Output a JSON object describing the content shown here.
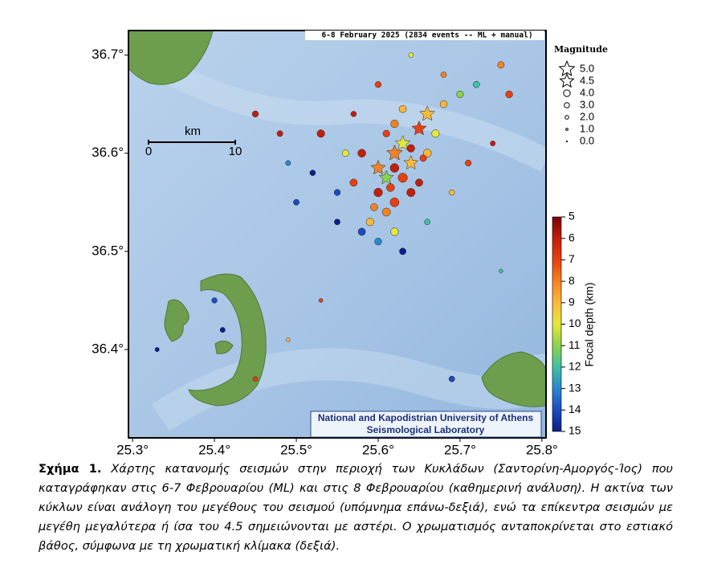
{
  "map": {
    "title": "6-8 February 2025 (2834 events -- ML + manual)",
    "institution": [
      "National and Kapodistrian University of Athens",
      "Seismological Laboratory"
    ],
    "xlim": [
      25.295,
      25.805
    ],
    "ylim": [
      36.31,
      36.725
    ],
    "xticks": [
      {
        "value": 25.3,
        "label": "25.3°"
      },
      {
        "value": 25.4,
        "label": "25.4°"
      },
      {
        "value": 25.5,
        "label": "25.5°"
      },
      {
        "value": 25.6,
        "label": "25.6°"
      },
      {
        "value": 25.7,
        "label": "25.7°"
      },
      {
        "value": 25.8,
        "label": "25.8°"
      }
    ],
    "yticks": [
      {
        "value": 36.4,
        "label": "36.4°"
      },
      {
        "value": 36.5,
        "label": "36.5°"
      },
      {
        "value": 36.6,
        "label": "36.6°"
      },
      {
        "value": 36.7,
        "label": "36.7°"
      }
    ],
    "scale_bar": {
      "unit": "km",
      "ticks": [
        0,
        10
      ]
    },
    "legend": {
      "title": "Magnitude",
      "items": [
        {
          "value": 5,
          "label": "5.0",
          "symbol": "star"
        },
        {
          "value": 4.5,
          "label": "4.5",
          "symbol": "star"
        },
        {
          "value": 4,
          "label": "4.0",
          "symbol": "circle"
        },
        {
          "value": 3,
          "label": "3.0",
          "symbol": "circle"
        },
        {
          "value": 2,
          "label": "2.0",
          "symbol": "circle"
        },
        {
          "value": 1,
          "label": "1.0",
          "symbol": "circle"
        },
        {
          "value": 0,
          "label": "0.0",
          "symbol": "circle"
        }
      ]
    },
    "colorbar": {
      "label": "Focal depth (km)",
      "ticks": [
        5,
        6,
        7,
        8,
        9,
        10,
        11,
        12,
        13,
        14,
        15
      ],
      "colors": [
        "#7a0403",
        "#c41e0a",
        "#e8400f",
        "#f7821f",
        "#fbb93a",
        "#e3e83a",
        "#8ed24b",
        "#3ec1a4",
        "#2a87d0",
        "#1c4bc0",
        "#0a1f8a"
      ]
    },
    "events": {
      "lon": [
        25.62,
        25.66,
        25.65,
        25.63,
        25.6,
        25.64,
        25.61,
        25.63,
        25.6,
        25.62,
        25.61,
        25.59,
        25.62,
        25.6,
        25.64,
        25.65,
        25.66,
        25.67,
        25.68,
        25.7,
        25.72,
        25.75,
        25.76,
        25.58,
        25.57,
        25.55,
        25.56,
        25.53,
        25.52,
        25.5,
        25.49,
        25.58,
        25.55,
        25.63,
        25.66,
        25.69,
        25.71,
        25.74,
        25.68,
        25.64,
        25.6,
        25.57,
        25.45,
        25.48,
        25.4,
        25.33,
        25.41,
        25.45,
        25.49,
        25.53,
        25.69,
        25.75,
        25.62,
        25.63,
        25.61,
        25.64,
        25.62,
        25.655,
        25.595,
        25.615
      ],
      "lat": [
        36.6,
        36.64,
        36.625,
        36.61,
        36.585,
        36.59,
        36.575,
        36.575,
        36.56,
        36.55,
        36.54,
        36.53,
        36.52,
        36.51,
        36.56,
        36.57,
        36.6,
        36.62,
        36.65,
        36.66,
        36.67,
        36.69,
        36.66,
        36.6,
        36.57,
        36.56,
        36.6,
        36.62,
        36.58,
        36.55,
        36.59,
        36.52,
        36.53,
        36.5,
        36.53,
        36.56,
        36.59,
        36.61,
        36.68,
        36.7,
        36.67,
        36.64,
        36.64,
        36.62,
        36.45,
        36.4,
        36.42,
        36.37,
        36.41,
        36.45,
        36.37,
        36.48,
        36.63,
        36.645,
        36.62,
        36.605,
        36.585,
        36.595,
        36.545,
        36.565
      ],
      "magnitude": [
        5.0,
        4.8,
        4.6,
        4.7,
        4.6,
        4.5,
        4.5,
        4.4,
        4.0,
        4.2,
        3.8,
        3.5,
        3.6,
        3.2,
        3.9,
        3.4,
        3.8,
        3.5,
        3.3,
        3.1,
        2.9,
        3.0,
        3.2,
        3.7,
        3.4,
        2.8,
        3.0,
        3.5,
        2.5,
        2.6,
        2.2,
        3.4,
        2.6,
        3.0,
        2.5,
        2.4,
        2.7,
        2.2,
        2.5,
        2.0,
        2.7,
        2.4,
        2.8,
        2.6,
        2.4,
        1.8,
        2.2,
        2.0,
        1.5,
        1.6,
        2.6,
        1.5,
        3.6,
        3.3,
        3.1,
        3.5,
        4.1,
        3.0,
        3.3,
        3.7
      ],
      "depth": [
        8,
        9,
        7,
        10,
        8,
        9,
        11,
        7,
        6,
        7,
        8,
        9,
        10,
        13,
        6,
        6,
        9,
        10,
        9,
        11,
        12,
        8,
        7,
        6,
        7,
        14,
        10,
        6,
        15,
        14,
        13,
        14,
        15,
        15,
        12,
        9,
        7,
        6,
        8,
        10,
        7,
        6,
        6,
        6,
        14,
        15,
        15,
        7,
        9,
        7,
        14,
        12,
        8,
        9,
        7,
        6,
        6,
        7,
        8,
        7
      ]
    },
    "caption": {
      "label": "Σχήμα 1.",
      "text": "Χάρτης κατανομής σεισμών στην περιοχή των Κυκλάδων (Σαντορίνη-Αμοργός-Ίος) που καταγράφηκαν στις 6-7 Φεβρουαρίου (ML) και στις 8 Φεβρουαρίου (καθημερινή ανάλυση). Η ακτίνα των κύκλων είναι ανάλογη του μεγέθους του σεισμού (υπόμνημα επάνω-δεξιά), ενώ τα επίκεντρα σεισμών με μεγέθη μεγαλύτερα ή ίσα του 4.5 σημειώνονται με αστέρι. Ο χρωματισμός ανταποκρίνεται στο εστιακό βάθος, σύμφωνα με τη χρωματική κλίμακα (δεξιά)."
    }
  }
}
